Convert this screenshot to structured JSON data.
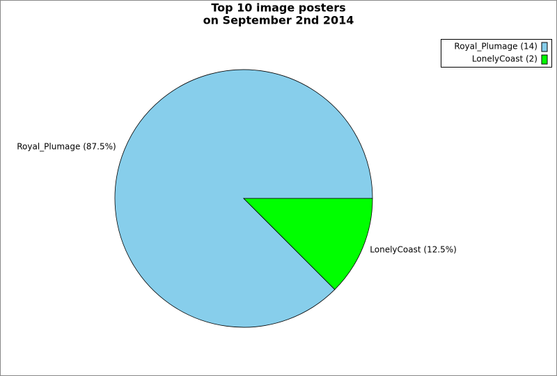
{
  "chart_data": {
    "type": "pie",
    "title": "Top 10 image posters",
    "subtitle": "on September 2nd 2014",
    "categories": [
      "Royal_Plumage",
      "LonelyCoast"
    ],
    "values": [
      87.5,
      12.5
    ],
    "value_labels": [
      "Royal_Plumage (87.5%)",
      "LonelyCoast (12.5%)"
    ],
    "legend_labels": [
      "Royal_Plumage (14)",
      "LonelyCoast (2)"
    ],
    "colors": [
      "#87ceeb",
      "#00ff00"
    ],
    "legend": "top-right"
  }
}
